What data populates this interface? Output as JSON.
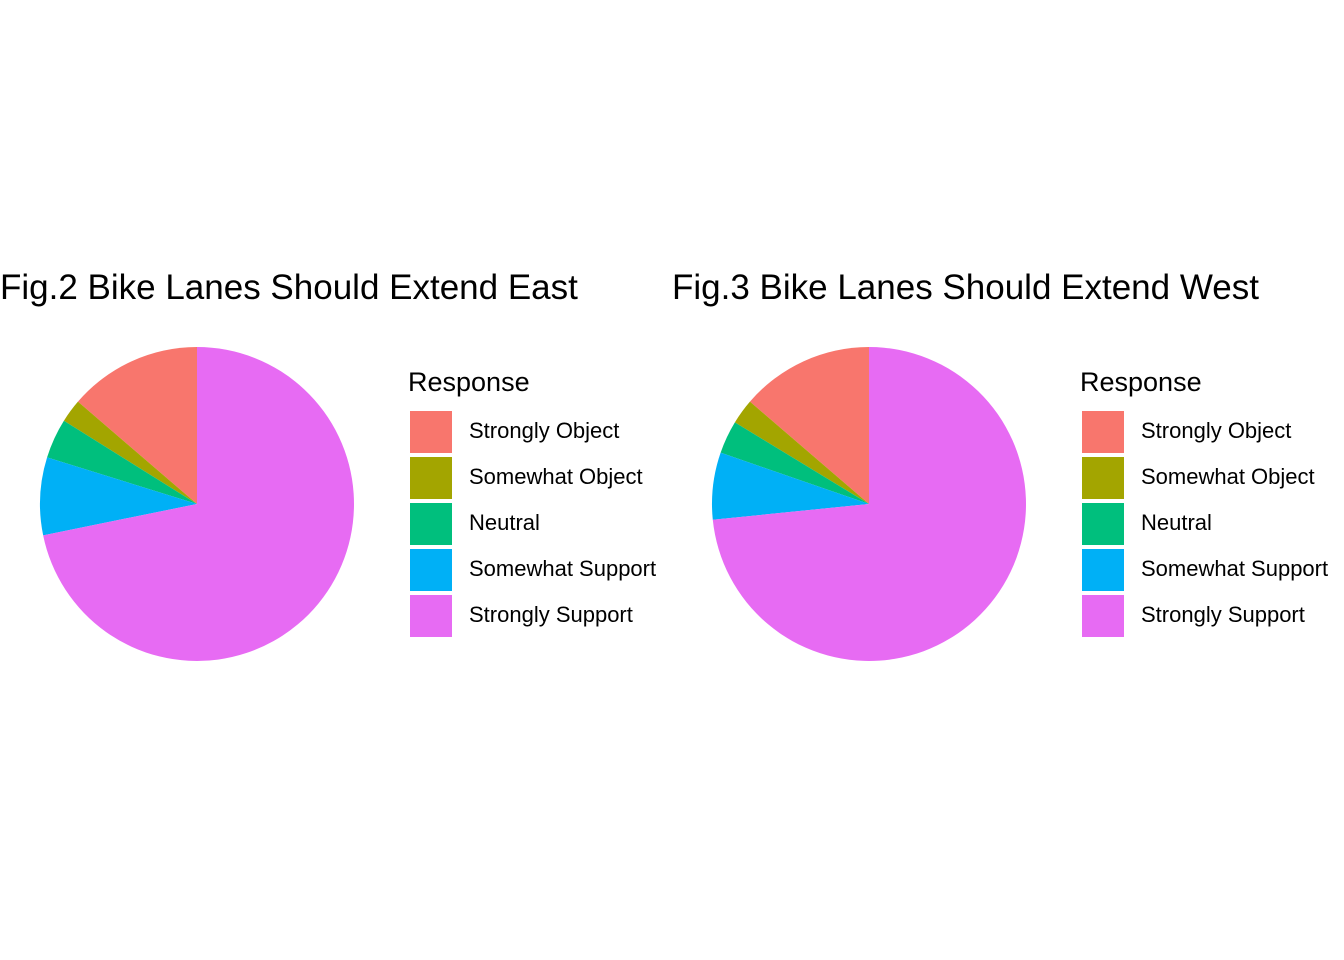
{
  "chart_data": [
    {
      "type": "pie",
      "title": "Fig.2 Bike Lanes Should Extend East",
      "legend_title": "Response",
      "legend_position": "right",
      "categories": [
        "Strongly Object",
        "Somewhat Object",
        "Neutral",
        "Somewhat Support",
        "Strongly Support"
      ],
      "values": [
        13.7,
        2.4,
        4.1,
        8.0,
        71.8
      ],
      "colors": [
        "#F8766D",
        "#A3A500",
        "#00BF7D",
        "#00B0F6",
        "#E76BF3"
      ]
    },
    {
      "type": "pie",
      "title": "Fig.3 Bike Lanes Should Extend West",
      "legend_title": "Response",
      "legend_position": "right",
      "categories": [
        "Strongly Object",
        "Somewhat Object",
        "Neutral",
        "Somewhat Support",
        "Strongly Support"
      ],
      "values": [
        13.7,
        2.6,
        3.4,
        6.9,
        73.4
      ],
      "colors": [
        "#F8766D",
        "#A3A500",
        "#00BF7D",
        "#00B0F6",
        "#E76BF3"
      ]
    }
  ]
}
